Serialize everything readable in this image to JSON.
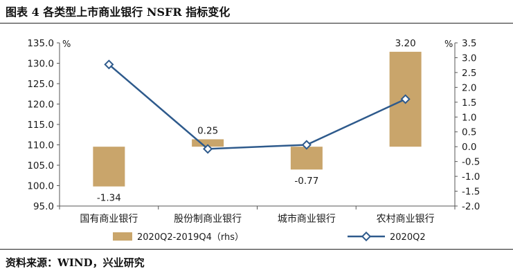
{
  "header": {
    "title": "图表 4  各类型上市商业银行 NSFR 指标变化"
  },
  "footer": {
    "source": "资料来源：WIND，兴业研究"
  },
  "chart_data": {
    "type": "bar",
    "categories": [
      "国有商业银行",
      "股份制商业银行",
      "城市商业银行",
      "农村商业银行"
    ],
    "series": [
      {
        "name": "2020Q2-2019Q4（rhs）",
        "type": "bar",
        "axis": "right",
        "values": [
          -1.34,
          0.25,
          -0.77,
          3.2
        ],
        "data_labels": [
          "-1.34",
          "0.25",
          "-0.77",
          "3.20"
        ]
      },
      {
        "name": "2020Q2",
        "type": "line",
        "axis": "left",
        "values": [
          129.7,
          109.0,
          110.0,
          121.2
        ]
      }
    ],
    "y_left": {
      "unit": "%",
      "ylim": [
        95.0,
        135.0
      ],
      "ticks": [
        "95.0",
        "100.0",
        "105.0",
        "110.0",
        "115.0",
        "120.0",
        "125.0",
        "130.0",
        "135.0"
      ]
    },
    "y_right": {
      "unit": "%",
      "ylim": [
        -2.0,
        3.5
      ],
      "ticks": [
        "-2.0",
        "-1.5",
        "-1.0",
        "-0.5",
        "0.0",
        "0.5",
        "1.0",
        "1.5",
        "2.0",
        "2.5",
        "3.0",
        "3.5"
      ]
    },
    "grid": false,
    "legend_position": "bottom",
    "colors": {
      "bar": "#c9a56b",
      "line": "#2e5a8c",
      "marker_fill": "#ffffff",
      "axis": "#555555"
    }
  }
}
